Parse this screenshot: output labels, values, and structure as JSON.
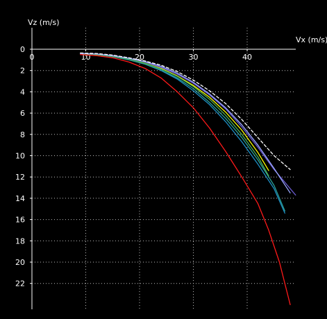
{
  "chart_data": {
    "type": "line",
    "xlabel": "Vx (m/s)",
    "ylabel": "Vz (m/s)",
    "xlim": [
      0,
      49
    ],
    "ylim": [
      0,
      24
    ],
    "y_axis_inverted": true,
    "grid": true,
    "x_ticks": [
      0,
      10,
      20,
      30,
      40
    ],
    "y_ticks": [
      0,
      2,
      4,
      6,
      8,
      10,
      12,
      14,
      16,
      18,
      20,
      22
    ],
    "background": "#000000",
    "axis_color": "#ffffff",
    "grid_color": "#bfbfbf",
    "series": [
      {
        "color": "#ff1a1a",
        "x": [
          9,
          12,
          15,
          18,
          21,
          24,
          27,
          30,
          33,
          36,
          39,
          42,
          44,
          46,
          48
        ],
        "y": [
          0.5,
          0.6,
          0.8,
          1.2,
          1.8,
          2.7,
          4.0,
          5.5,
          7.4,
          9.6,
          12.0,
          14.5,
          17.0,
          20.0,
          24.0
        ]
      },
      {
        "color": "#1e90c8",
        "x": [
          9,
          12,
          15,
          18,
          21,
          24,
          27,
          30,
          33,
          36,
          39,
          42,
          45,
          47
        ],
        "y": [
          0.4,
          0.5,
          0.7,
          1.0,
          1.4,
          2.0,
          2.8,
          3.9,
          5.2,
          6.8,
          8.7,
          10.8,
          13.1,
          15.4
        ]
      },
      {
        "color": "#2aa198",
        "x": [
          9,
          12,
          15,
          18,
          21,
          24,
          27,
          30,
          33,
          36,
          39,
          42,
          45,
          47
        ],
        "y": [
          0.4,
          0.5,
          0.7,
          1.0,
          1.4,
          1.95,
          2.7,
          3.7,
          5.0,
          6.5,
          8.3,
          10.4,
          12.8,
          15.2
        ]
      },
      {
        "color": "#ffff00",
        "x": [
          9,
          12,
          15,
          18,
          21,
          24,
          27,
          30,
          33,
          36,
          39,
          42,
          44
        ],
        "y": [
          0.4,
          0.5,
          0.65,
          0.9,
          1.3,
          1.8,
          2.5,
          3.4,
          4.5,
          5.9,
          7.6,
          9.7,
          11.4
        ]
      },
      {
        "color": "#4caf50",
        "x": [
          9,
          12,
          15,
          18,
          21,
          24,
          27,
          30,
          33,
          36,
          39,
          42,
          44
        ],
        "y": [
          0.4,
          0.5,
          0.65,
          0.9,
          1.3,
          1.85,
          2.55,
          3.5,
          4.7,
          6.2,
          8.0,
          10.1,
          11.9
        ]
      },
      {
        "color": "#6a5acd",
        "x": [
          9,
          12,
          15,
          18,
          21,
          24,
          27,
          30,
          33,
          36,
          39,
          42,
          45,
          49
        ],
        "y": [
          0.4,
          0.45,
          0.6,
          0.85,
          1.2,
          1.7,
          2.35,
          3.2,
          4.3,
          5.6,
          7.3,
          9.2,
          11.3,
          13.7
        ]
      },
      {
        "color": "#9aa7ff",
        "x": [
          9,
          12,
          15,
          18,
          21,
          24,
          27,
          30,
          33,
          36,
          39,
          42,
          45,
          48
        ],
        "y": [
          0.4,
          0.45,
          0.6,
          0.85,
          1.15,
          1.6,
          2.25,
          3.1,
          4.2,
          5.5,
          7.1,
          9.0,
          11.2,
          13.5
        ]
      },
      {
        "color": "#ffffff",
        "dashed": true,
        "x": [
          9,
          12,
          15,
          18,
          21,
          24,
          27,
          30,
          33,
          36,
          39,
          42,
          45,
          48
        ],
        "y": [
          0.35,
          0.4,
          0.55,
          0.8,
          1.1,
          1.5,
          2.1,
          2.9,
          3.9,
          5.1,
          6.6,
          8.3,
          10.0,
          11.3
        ]
      }
    ]
  }
}
